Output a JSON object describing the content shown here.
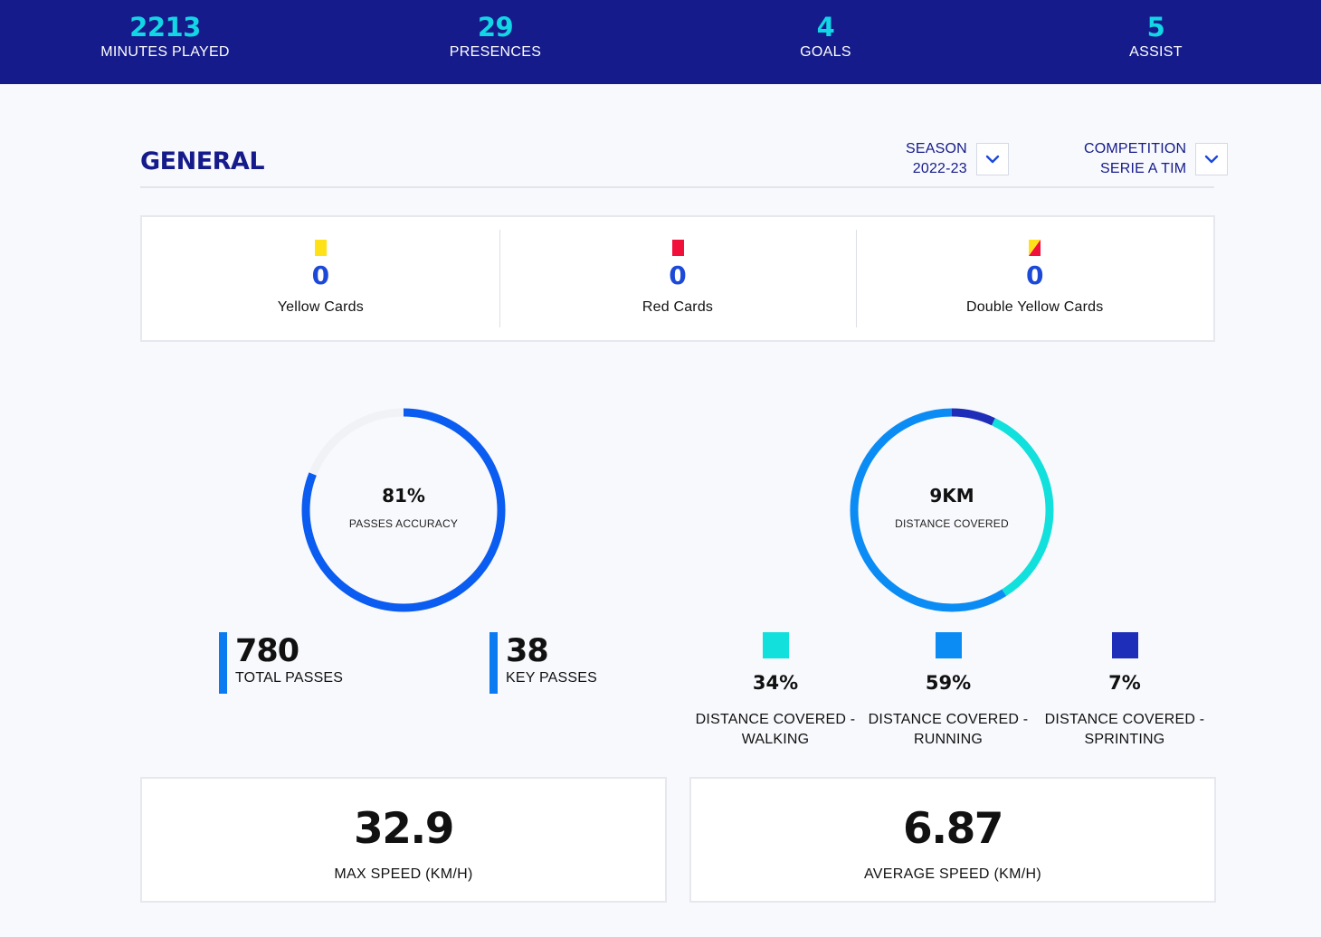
{
  "top_stats": [
    {
      "value": "2213",
      "label": "MINUTES PLAYED"
    },
    {
      "value": "29",
      "label": "PRESENCES"
    },
    {
      "value": "4",
      "label": "GOALS"
    },
    {
      "value": "5",
      "label": "ASSIST"
    }
  ],
  "general": {
    "title": "GENERAL",
    "season": {
      "label": "SEASON",
      "value": "2022-23"
    },
    "competition": {
      "label": "COMPETITION",
      "value": "SERIE A TIM"
    }
  },
  "cards": [
    {
      "value": "0",
      "label": "Yellow Cards",
      "icon": "yellow-card-icon",
      "color": "#ffe11a"
    },
    {
      "value": "0",
      "label": "Red Cards",
      "icon": "red-card-icon",
      "color": "#f0103a"
    },
    {
      "value": "0",
      "label": "Double Yellow Cards",
      "icon": "double-yellow-card-icon",
      "color_a": "#ffe11a",
      "color_b": "#f0103a"
    }
  ],
  "passes": {
    "accuracy_value": "81%",
    "accuracy_label": "PASSES ACCURACY",
    "accuracy_fraction": 0.81,
    "ring_color": "#0b5cf0",
    "track_color": "#f1f2f5",
    "total": {
      "value": "780",
      "label": "TOTAL PASSES"
    },
    "key": {
      "value": "38",
      "label": "KEY PASSES"
    }
  },
  "distance": {
    "value": "9KM",
    "label": "DISTANCE COVERED",
    "segments": [
      {
        "pct": "34%",
        "fraction": 0.34,
        "label_line1": "DISTANCE COVERED -",
        "label_line2": "WALKING",
        "color": "#12e0dc"
      },
      {
        "pct": "59%",
        "fraction": 0.59,
        "label_line1": "DISTANCE COVERED -",
        "label_line2": "RUNNING",
        "color": "#0b8cf5"
      },
      {
        "pct": "7%",
        "fraction": 0.07,
        "label_line1": "DISTANCE COVERED -",
        "label_line2": "SPRINTING",
        "color": "#1f2eb8"
      }
    ]
  },
  "speed": {
    "max": {
      "value": "32.9",
      "label": "MAX SPEED (KM/H)"
    },
    "avg": {
      "value": "6.87",
      "label": "AVERAGE SPEED (KM/H)"
    }
  }
}
